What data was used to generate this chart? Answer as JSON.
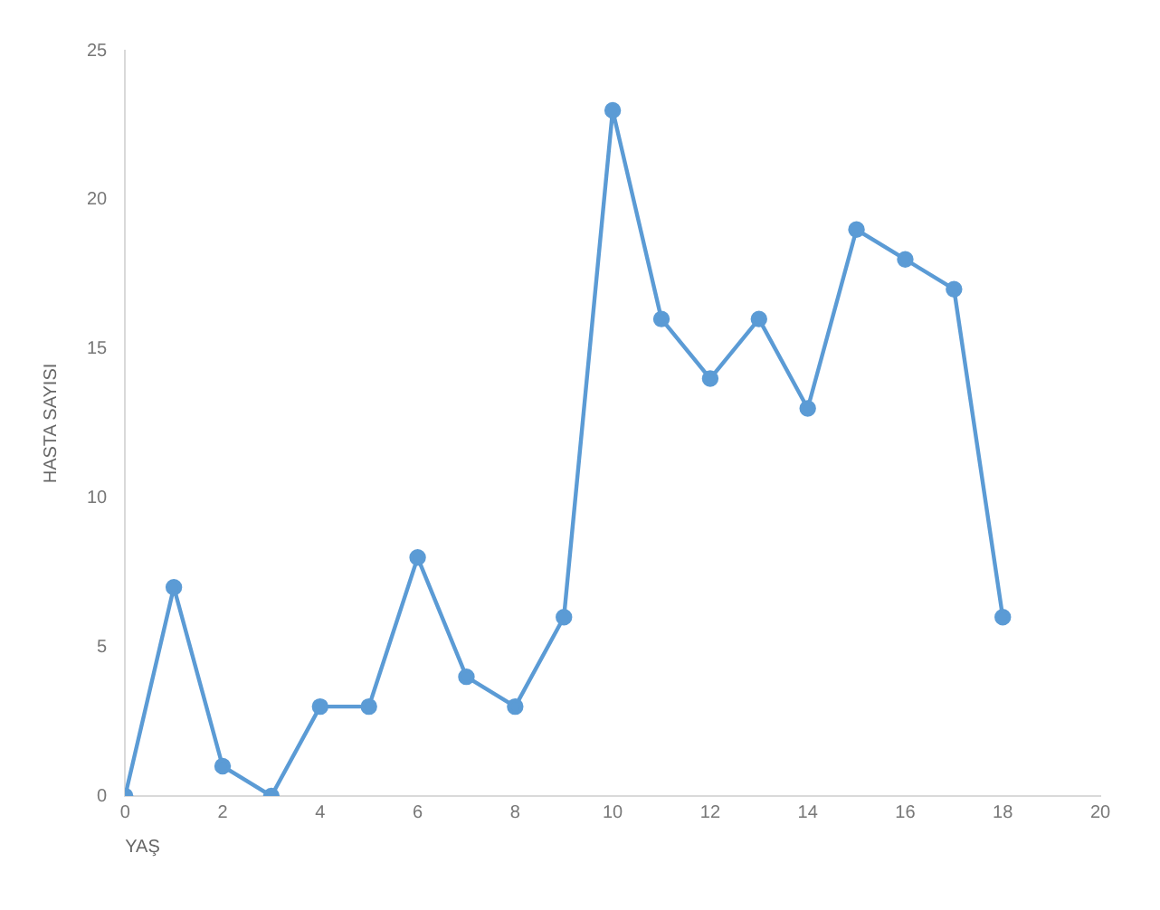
{
  "chart_data": {
    "type": "line",
    "xlabel": "YAŞ",
    "ylabel": "HASTA SAYISI",
    "x": [
      0,
      1,
      2,
      3,
      4,
      5,
      6,
      7,
      8,
      9,
      10,
      11,
      12,
      13,
      14,
      15,
      16,
      17,
      18
    ],
    "series": [
      {
        "color": "#5b9bd5",
        "values": [
          0,
          7,
          1,
          0,
          3,
          3,
          8,
          4,
          3,
          6,
          23,
          16,
          14,
          16,
          13,
          19,
          18,
          17,
          6
        ]
      }
    ],
    "xlim": [
      0,
      20
    ],
    "xticks": [
      0,
      2,
      4,
      6,
      8,
      10,
      12,
      14,
      16,
      18,
      20
    ],
    "ylim": [
      0,
      25
    ],
    "yticks": [
      0,
      5,
      10,
      15,
      20,
      25
    ],
    "grid": false,
    "legend": false,
    "marker": "circle",
    "line_style": "solid"
  }
}
